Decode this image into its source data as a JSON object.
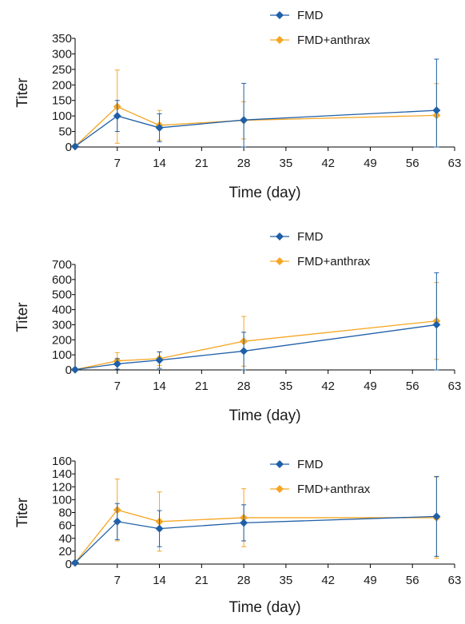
{
  "chart_data": [
    {
      "type": "line",
      "title": "",
      "xlabel": "Time (day)",
      "ylabel": "Titer",
      "xlim": [
        0,
        63
      ],
      "ylim": [
        0,
        350
      ],
      "xticks": [
        7,
        14,
        21,
        28,
        35,
        42,
        49,
        56,
        63
      ],
      "yticks": [
        0,
        50,
        100,
        150,
        200,
        250,
        300,
        350
      ],
      "grid": false,
      "legend_position": "top-center",
      "series": [
        {
          "name": "FMD",
          "color": "#1f5fa8",
          "marker": "diamond",
          "x": [
            0,
            7,
            14,
            28,
            60
          ],
          "y": [
            2,
            100,
            62,
            87,
            118
          ],
          "err": [
            0,
            50,
            45,
            118,
            165
          ]
        },
        {
          "name": "FMD+anthrax",
          "color": "#f5a623",
          "marker": "diamond",
          "x": [
            0,
            7,
            14,
            28,
            60
          ],
          "y": [
            2,
            130,
            70,
            86,
            102
          ],
          "err": [
            0,
            118,
            48,
            60,
            102
          ]
        }
      ]
    },
    {
      "type": "line",
      "title": "",
      "xlabel": "Time (day)",
      "ylabel": "Titer",
      "xlim": [
        0,
        63
      ],
      "ylim": [
        0,
        700
      ],
      "xticks": [
        7,
        14,
        21,
        28,
        35,
        42,
        49,
        56,
        63
      ],
      "yticks": [
        0,
        100,
        200,
        300,
        400,
        500,
        600,
        700
      ],
      "grid": false,
      "legend_position": "top-center",
      "series": [
        {
          "name": "FMD",
          "color": "#1f5fa8",
          "marker": "diamond",
          "x": [
            0,
            7,
            14,
            28,
            60
          ],
          "y": [
            2,
            40,
            65,
            125,
            300
          ],
          "err": [
            0,
            35,
            55,
            125,
            345
          ]
        },
        {
          "name": "FMD+anthrax",
          "color": "#f5a623",
          "marker": "diamond",
          "x": [
            0,
            7,
            14,
            28,
            60
          ],
          "y": [
            2,
            60,
            75,
            190,
            325
          ],
          "err": [
            0,
            55,
            45,
            165,
            255
          ]
        }
      ]
    },
    {
      "type": "line",
      "title": "",
      "xlabel": "Time (day)",
      "ylabel": "Titer",
      "xlim": [
        0,
        63
      ],
      "ylim": [
        0,
        160
      ],
      "xticks": [
        7,
        14,
        21,
        28,
        35,
        42,
        49,
        56,
        63
      ],
      "yticks": [
        0,
        20,
        40,
        60,
        80,
        100,
        120,
        140,
        160
      ],
      "grid": false,
      "legend_position": "top-center",
      "series": [
        {
          "name": "FMD",
          "color": "#1f5fa8",
          "marker": "diamond",
          "x": [
            0,
            7,
            14,
            28,
            60
          ],
          "y": [
            2,
            66,
            55,
            64,
            74
          ],
          "err": [
            0,
            28,
            28,
            28,
            62
          ]
        },
        {
          "name": "FMD+anthrax",
          "color": "#f5a623",
          "marker": "diamond",
          "x": [
            0,
            7,
            14,
            28,
            60
          ],
          "y": [
            2,
            84,
            66,
            72,
            72
          ],
          "err": [
            0,
            48,
            46,
            45,
            63
          ]
        }
      ]
    }
  ]
}
